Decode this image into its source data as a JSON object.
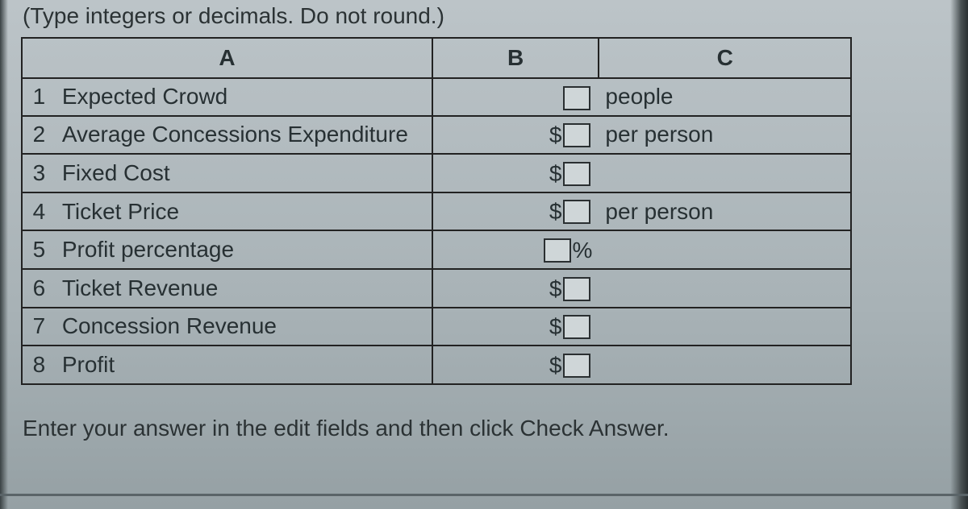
{
  "instruction_top": "(Type integers or decimals. Do not round.)",
  "instruction_bottom": "Enter your answer in the edit fields and then click Check Answer.",
  "columns": {
    "a": "A",
    "b": "B",
    "c": "C"
  },
  "rows": [
    {
      "num": "1",
      "label": "Expected Crowd",
      "b_prefix": "",
      "b_suffix": "",
      "c_text": "people"
    },
    {
      "num": "2",
      "label": "Average Concessions Expenditure",
      "b_prefix": "$",
      "b_suffix": "",
      "c_text": "per person"
    },
    {
      "num": "3",
      "label": "Fixed Cost",
      "b_prefix": "$",
      "b_suffix": "",
      "c_text": ""
    },
    {
      "num": "4",
      "label": "Ticket Price",
      "b_prefix": "$",
      "b_suffix": "",
      "c_text": "per person"
    },
    {
      "num": "5",
      "label": "Profit percentage",
      "b_prefix": "",
      "b_suffix": "%",
      "c_text": ""
    },
    {
      "num": "6",
      "label": "Ticket Revenue",
      "b_prefix": "$",
      "b_suffix": "",
      "c_text": ""
    },
    {
      "num": "7",
      "label": "Concession Revenue",
      "b_prefix": "$",
      "b_suffix": "",
      "c_text": ""
    },
    {
      "num": "8",
      "label": "Profit",
      "b_prefix": "$",
      "b_suffix": "",
      "c_text": ""
    }
  ],
  "styling": {
    "border_color": "#222222",
    "text_color": "#2b3234",
    "input_box_bg": "#cfd6d8",
    "font_size_pt": 21
  }
}
